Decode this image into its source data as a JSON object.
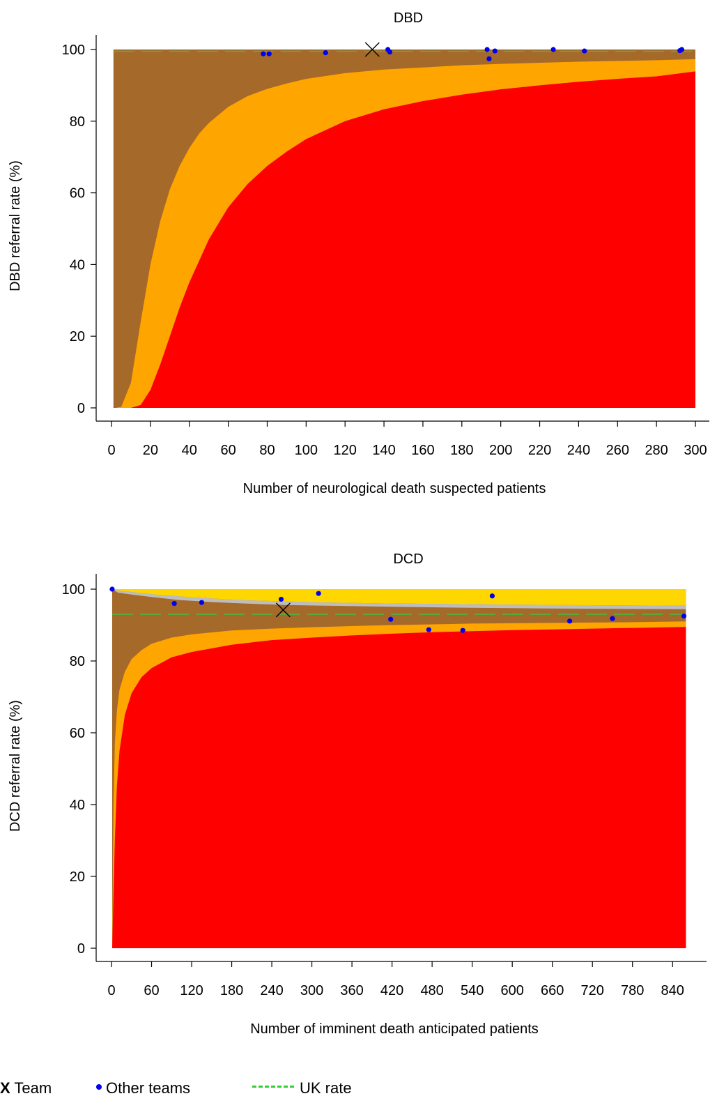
{
  "colors": {
    "red": "#ff0000",
    "orange": "#ffa500",
    "brown": "#a5692a",
    "gold": "#ffd700",
    "gray": "#bdbdbd",
    "uk_line": "#44bb44",
    "points": "#0000ee"
  },
  "legend": {
    "team_symbol": "X",
    "team_label": "Team",
    "others_label": "Other teams",
    "uk_label": "UK rate"
  },
  "chart_data": [
    {
      "type": "funnel",
      "title": "DBD",
      "xlabel": "Number of neurological death suspected patients",
      "ylabel": "DBD referral rate (%)",
      "xlim": [
        0,
        300
      ],
      "ylim": [
        0,
        100
      ],
      "xticks": [
        0,
        20,
        40,
        60,
        80,
        100,
        120,
        140,
        160,
        180,
        200,
        220,
        240,
        260,
        280,
        300
      ],
      "yticks": [
        0,
        20,
        40,
        60,
        80,
        100
      ],
      "uk_rate": 99.5,
      "team": {
        "x": 134,
        "y": 100
      },
      "other_teams": [
        {
          "x": 78,
          "y": 98.8
        },
        {
          "x": 81,
          "y": 98.8
        },
        {
          "x": 110,
          "y": 99.1
        },
        {
          "x": 142,
          "y": 100
        },
        {
          "x": 143,
          "y": 99.3
        },
        {
          "x": 193,
          "y": 100
        },
        {
          "x": 194,
          "y": 97.4
        },
        {
          "x": 197,
          "y": 99.6
        },
        {
          "x": 227,
          "y": 100
        },
        {
          "x": 243,
          "y": 99.6
        },
        {
          "x": 292,
          "y": 99.7
        },
        {
          "x": 293,
          "y": 100
        }
      ],
      "bands": {
        "lower_outer": [
          [
            1,
            0
          ],
          [
            2,
            0
          ],
          [
            5,
            0
          ],
          [
            10,
            0
          ],
          [
            15,
            0.8
          ],
          [
            20,
            5
          ],
          [
            25,
            12
          ],
          [
            30,
            20
          ],
          [
            35,
            28
          ],
          [
            40,
            35
          ],
          [
            45,
            41
          ],
          [
            50,
            47
          ],
          [
            60,
            56
          ],
          [
            70,
            62.5
          ],
          [
            80,
            67.5
          ],
          [
            90,
            71.5
          ],
          [
            100,
            75
          ],
          [
            120,
            80
          ],
          [
            140,
            83.3
          ],
          [
            160,
            85.6
          ],
          [
            180,
            87.4
          ],
          [
            200,
            88.9
          ],
          [
            220,
            90
          ],
          [
            240,
            91
          ],
          [
            260,
            91.8
          ],
          [
            280,
            92.5
          ],
          [
            300,
            93.9
          ]
        ],
        "lower_inner": [
          [
            1,
            0
          ],
          [
            2,
            0
          ],
          [
            5,
            0.3
          ],
          [
            10,
            7
          ],
          [
            15,
            24
          ],
          [
            20,
            40
          ],
          [
            25,
            52
          ],
          [
            30,
            61
          ],
          [
            35,
            67.5
          ],
          [
            40,
            72.5
          ],
          [
            45,
            76.5
          ],
          [
            50,
            79.5
          ],
          [
            60,
            84
          ],
          [
            70,
            87
          ],
          [
            80,
            89
          ],
          [
            90,
            90.5
          ],
          [
            100,
            91.8
          ],
          [
            120,
            93.4
          ],
          [
            140,
            94.4
          ],
          [
            160,
            95
          ],
          [
            180,
            95.6
          ],
          [
            200,
            96
          ],
          [
            220,
            96.3
          ],
          [
            240,
            96.6
          ],
          [
            260,
            96.8
          ],
          [
            280,
            97
          ],
          [
            300,
            97.3
          ]
        ],
        "upper": [
          [
            1,
            100
          ],
          [
            300,
            100
          ]
        ]
      }
    },
    {
      "type": "funnel",
      "title": "DCD",
      "xlabel": "Number of imminent death anticipated patients",
      "ylabel": "DCD referral rate (%)",
      "xlim": [
        0,
        870
      ],
      "ylim": [
        0,
        100
      ],
      "xticks": [
        0,
        60,
        120,
        180,
        240,
        300,
        360,
        420,
        480,
        540,
        600,
        660,
        720,
        780,
        840
      ],
      "yticks": [
        0,
        20,
        40,
        60,
        80,
        100
      ],
      "uk_rate": 93,
      "team": {
        "x": 257,
        "y": 94.2
      },
      "other_teams": [
        {
          "x": 1,
          "y": 100
        },
        {
          "x": 94,
          "y": 96
        },
        {
          "x": 135,
          "y": 96.3
        },
        {
          "x": 254,
          "y": 97.2
        },
        {
          "x": 310,
          "y": 98.8
        },
        {
          "x": 418,
          "y": 91.6
        },
        {
          "x": 475,
          "y": 88.7
        },
        {
          "x": 526,
          "y": 88.5
        },
        {
          "x": 570,
          "y": 98.1
        },
        {
          "x": 686,
          "y": 91.1
        },
        {
          "x": 750,
          "y": 91.8
        },
        {
          "x": 857,
          "y": 92.5
        }
      ],
      "bands": {
        "lower_outer": [
          [
            1,
            0
          ],
          [
            3,
            15
          ],
          [
            5,
            30
          ],
          [
            8,
            45
          ],
          [
            12,
            55
          ],
          [
            20,
            65
          ],
          [
            30,
            71
          ],
          [
            45,
            75.5
          ],
          [
            60,
            78
          ],
          [
            90,
            81
          ],
          [
            120,
            82.5
          ],
          [
            180,
            84.5
          ],
          [
            240,
            85.8
          ],
          [
            300,
            86.5
          ],
          [
            360,
            87.1
          ],
          [
            420,
            87.6
          ],
          [
            480,
            88
          ],
          [
            540,
            88.3
          ],
          [
            600,
            88.6
          ],
          [
            660,
            88.8
          ],
          [
            720,
            89
          ],
          [
            780,
            89.2
          ],
          [
            860,
            89.5
          ]
        ],
        "lower_inner": [
          [
            1,
            0
          ],
          [
            3,
            40
          ],
          [
            5,
            57
          ],
          [
            8,
            66
          ],
          [
            12,
            72
          ],
          [
            20,
            77
          ],
          [
            30,
            80.5
          ],
          [
            45,
            83
          ],
          [
            60,
            84.8
          ],
          [
            90,
            86.5
          ],
          [
            120,
            87.4
          ],
          [
            180,
            88.5
          ],
          [
            240,
            89
          ],
          [
            300,
            89.4
          ],
          [
            360,
            89.7
          ],
          [
            420,
            90
          ],
          [
            480,
            90.2
          ],
          [
            540,
            90.4
          ],
          [
            600,
            90.5
          ],
          [
            660,
            90.6
          ],
          [
            720,
            90.7
          ],
          [
            780,
            90.8
          ],
          [
            860,
            91
          ]
        ],
        "gray_lower": [
          [
            1,
            100
          ],
          [
            10,
            99
          ],
          [
            30,
            98.5
          ],
          [
            60,
            97.8
          ],
          [
            100,
            97
          ],
          [
            150,
            96.4
          ],
          [
            200,
            96
          ],
          [
            260,
            95.6
          ],
          [
            320,
            95.4
          ],
          [
            420,
            95.1
          ],
          [
            540,
            94.8
          ],
          [
            660,
            94.6
          ],
          [
            760,
            94.5
          ],
          [
            860,
            94.4
          ]
        ],
        "gray_upper": [
          [
            1,
            100
          ],
          [
            10,
            99.6
          ],
          [
            30,
            99.2
          ],
          [
            60,
            98.6
          ],
          [
            100,
            98
          ],
          [
            150,
            97.4
          ],
          [
            200,
            96.9
          ],
          [
            260,
            96.6
          ],
          [
            320,
            96.3
          ],
          [
            420,
            96
          ],
          [
            540,
            95.8
          ],
          [
            660,
            95.6
          ],
          [
            760,
            95.5
          ],
          [
            860,
            95.4
          ]
        ],
        "upper": [
          [
            1,
            100
          ],
          [
            860,
            100
          ]
        ]
      }
    }
  ]
}
